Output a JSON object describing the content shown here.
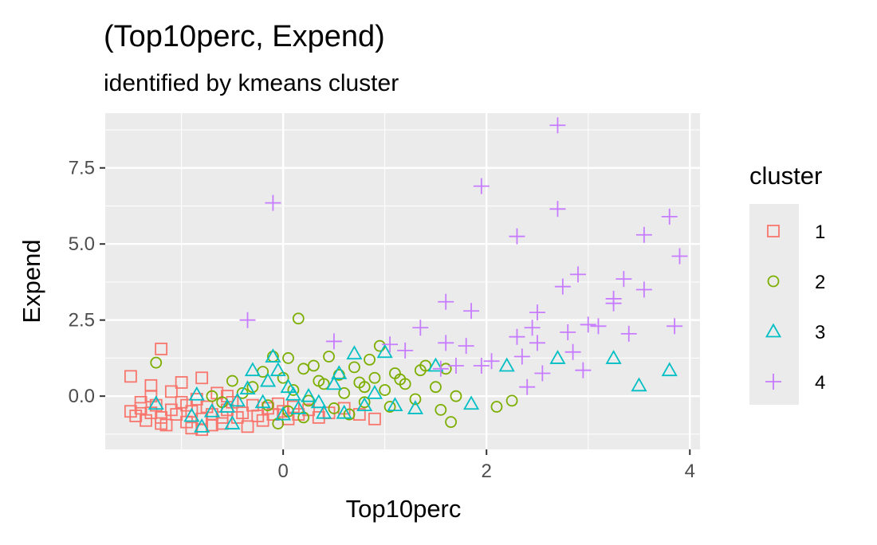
{
  "chart_data": {
    "type": "scatter",
    "title": "(Top10perc, Expend)",
    "subtitle": "identified by kmeans cluster",
    "xlabel": "Top10perc",
    "ylabel": "Expend",
    "xlim": [
      -1.75,
      4.1
    ],
    "ylim": [
      -1.75,
      9.3
    ],
    "x_ticks": [
      0,
      2,
      4
    ],
    "x_tick_labels": [
      "0",
      "2",
      "4"
    ],
    "y_ticks": [
      0,
      2.5,
      5,
      7.5
    ],
    "y_tick_labels": [
      "0.0",
      "2.5",
      "5.0",
      "7.5"
    ],
    "grid": true,
    "legend": {
      "title": "cluster",
      "position": "right"
    },
    "series": [
      {
        "name": "1",
        "shape": "square",
        "color": "#F8766D",
        "points": [
          [
            -1.5,
            0.65
          ],
          [
            -1.2,
            1.55
          ],
          [
            -1.3,
            0.35
          ],
          [
            -1.0,
            0.45
          ],
          [
            -0.8,
            0.6
          ],
          [
            -1.5,
            -0.5
          ],
          [
            -1.45,
            -0.65
          ],
          [
            -1.4,
            -0.4
          ],
          [
            -1.35,
            -0.8
          ],
          [
            -1.3,
            -0.55
          ],
          [
            -1.3,
            0.0
          ],
          [
            -1.25,
            -0.3
          ],
          [
            -1.2,
            -0.7
          ],
          [
            -1.15,
            -0.95
          ],
          [
            -1.1,
            -0.45
          ],
          [
            -1.1,
            0.15
          ],
          [
            -1.05,
            -0.6
          ],
          [
            -1.0,
            -0.2
          ],
          [
            -0.95,
            -0.85
          ],
          [
            -0.9,
            -0.5
          ],
          [
            -0.85,
            -0.1
          ],
          [
            -0.8,
            -0.75
          ],
          [
            -0.8,
            -1.1
          ],
          [
            -0.75,
            -0.35
          ],
          [
            -0.7,
            -0.6
          ],
          [
            -0.65,
            0.1
          ],
          [
            -0.6,
            -0.9
          ],
          [
            -0.55,
            -0.45
          ],
          [
            -0.5,
            -0.2
          ],
          [
            -0.45,
            -0.7
          ],
          [
            -0.4,
            -0.55
          ],
          [
            -0.35,
            -1.0
          ],
          [
            -0.3,
            -0.3
          ],
          [
            -0.25,
            -0.65
          ],
          [
            -0.2,
            -0.8
          ],
          [
            -0.15,
            -0.4
          ],
          [
            -0.1,
            -0.6
          ],
          [
            -0.05,
            -0.25
          ],
          [
            0.0,
            -0.5
          ],
          [
            0.05,
            -0.75
          ],
          [
            0.1,
            -0.35
          ],
          [
            0.15,
            -0.6
          ],
          [
            0.25,
            -0.45
          ],
          [
            0.35,
            -0.7
          ],
          [
            0.45,
            -0.55
          ],
          [
            0.6,
            -0.4
          ],
          [
            0.75,
            -0.6
          ],
          [
            0.9,
            -0.75
          ],
          [
            -1.4,
            -0.2
          ],
          [
            -1.2,
            -0.9
          ],
          [
            -0.95,
            -0.3
          ],
          [
            -0.7,
            -0.95
          ],
          [
            -0.55,
            0.0
          ],
          [
            -0.9,
            -1.05
          ],
          [
            -0.6,
            -0.7
          ]
        ]
      },
      {
        "name": "2",
        "shape": "circle",
        "color": "#7CAE00",
        "points": [
          [
            -1.25,
            1.1
          ],
          [
            0.15,
            2.55
          ],
          [
            -0.5,
            0.5
          ],
          [
            -0.3,
            0.3
          ],
          [
            -0.2,
            0.8
          ],
          [
            -0.1,
            1.3
          ],
          [
            0.0,
            0.6
          ],
          [
            0.05,
            1.25
          ],
          [
            0.1,
            0.2
          ],
          [
            0.2,
            0.9
          ],
          [
            0.3,
            1.0
          ],
          [
            0.4,
            0.4
          ],
          [
            0.45,
            1.3
          ],
          [
            0.55,
            0.7
          ],
          [
            0.6,
            0.1
          ],
          [
            0.7,
            0.95
          ],
          [
            0.75,
            0.45
          ],
          [
            0.8,
            -0.2
          ],
          [
            0.85,
            1.2
          ],
          [
            0.9,
            0.6
          ],
          [
            0.95,
            1.65
          ],
          [
            1.0,
            0.2
          ],
          [
            1.05,
            -0.35
          ],
          [
            1.1,
            0.75
          ],
          [
            1.2,
            0.4
          ],
          [
            1.3,
            -0.1
          ],
          [
            1.35,
            0.85
          ],
          [
            1.5,
            0.3
          ],
          [
            1.55,
            -0.45
          ],
          [
            1.6,
            0.9
          ],
          [
            1.65,
            -0.85
          ],
          [
            1.7,
            0.0
          ],
          [
            2.1,
            -0.35
          ],
          [
            2.25,
            -0.15
          ],
          [
            -0.6,
            -0.2
          ],
          [
            -0.4,
            0.1
          ],
          [
            -0.15,
            -0.3
          ],
          [
            0.05,
            -0.5
          ],
          [
            0.25,
            -0.15
          ],
          [
            0.35,
            0.5
          ],
          [
            0.5,
            -0.4
          ],
          [
            0.65,
            -0.6
          ],
          [
            0.8,
            0.3
          ],
          [
            1.15,
            0.55
          ],
          [
            1.4,
            1.0
          ],
          [
            -0.7,
            0.0
          ],
          [
            -0.05,
            -0.9
          ],
          [
            0.2,
            -0.7
          ]
        ]
      },
      {
        "name": "3",
        "shape": "triangle",
        "color": "#00BFC4",
        "points": [
          [
            -1.25,
            -0.25
          ],
          [
            -0.85,
            0.05
          ],
          [
            -0.8,
            -1.0
          ],
          [
            -0.7,
            -0.5
          ],
          [
            -0.55,
            -0.35
          ],
          [
            -0.5,
            -0.9
          ],
          [
            -0.35,
            0.25
          ],
          [
            -0.3,
            0.85
          ],
          [
            -0.2,
            -0.2
          ],
          [
            -0.1,
            1.3
          ],
          [
            -0.05,
            0.85
          ],
          [
            0.0,
            -0.6
          ],
          [
            0.05,
            0.3
          ],
          [
            0.15,
            -0.4
          ],
          [
            0.25,
            0.0
          ],
          [
            0.4,
            -0.55
          ],
          [
            0.5,
            0.4
          ],
          [
            0.55,
            0.75
          ],
          [
            0.7,
            1.4
          ],
          [
            0.8,
            -0.3
          ],
          [
            0.9,
            0.1
          ],
          [
            1.0,
            1.45
          ],
          [
            1.1,
            -0.3
          ],
          [
            1.3,
            -0.4
          ],
          [
            1.5,
            1.0
          ],
          [
            1.85,
            -0.25
          ],
          [
            2.2,
            1.0
          ],
          [
            2.7,
            1.25
          ],
          [
            3.25,
            1.25
          ],
          [
            3.5,
            0.35
          ],
          [
            3.8,
            0.85
          ],
          [
            -0.9,
            -0.65
          ],
          [
            -0.15,
            0.5
          ],
          [
            0.35,
            -0.2
          ],
          [
            0.6,
            -0.55
          ],
          [
            -0.45,
            -0.15
          ],
          [
            0.1,
            0.05
          ]
        ]
      },
      {
        "name": "4",
        "shape": "plus",
        "color": "#C77CFF",
        "points": [
          [
            -0.35,
            2.5
          ],
          [
            -0.1,
            6.35
          ],
          [
            0.5,
            1.8
          ],
          [
            1.05,
            1.7
          ],
          [
            1.2,
            1.5
          ],
          [
            1.35,
            2.25
          ],
          [
            1.55,
            0.9
          ],
          [
            1.6,
            1.75
          ],
          [
            1.6,
            3.1
          ],
          [
            1.7,
            1.0
          ],
          [
            1.8,
            1.65
          ],
          [
            1.85,
            2.8
          ],
          [
            1.95,
            6.9
          ],
          [
            1.95,
            1.0
          ],
          [
            2.3,
            5.25
          ],
          [
            2.35,
            1.3
          ],
          [
            2.4,
            0.3
          ],
          [
            2.45,
            2.25
          ],
          [
            2.5,
            2.75
          ],
          [
            2.5,
            1.75
          ],
          [
            2.55,
            0.75
          ],
          [
            2.7,
            8.9
          ],
          [
            2.7,
            6.15
          ],
          [
            2.75,
            3.6
          ],
          [
            2.8,
            2.1
          ],
          [
            2.85,
            1.45
          ],
          [
            2.9,
            4.0
          ],
          [
            2.95,
            0.85
          ],
          [
            3.0,
            2.35
          ],
          [
            3.1,
            2.3
          ],
          [
            3.25,
            3.05
          ],
          [
            3.35,
            3.85
          ],
          [
            3.4,
            2.05
          ],
          [
            3.55,
            5.3
          ],
          [
            3.55,
            3.5
          ],
          [
            3.8,
            5.9
          ],
          [
            3.85,
            2.3
          ],
          [
            3.9,
            4.6
          ],
          [
            3.25,
            3.2
          ],
          [
            2.3,
            1.95
          ],
          [
            2.05,
            1.15
          ]
        ]
      }
    ]
  }
}
